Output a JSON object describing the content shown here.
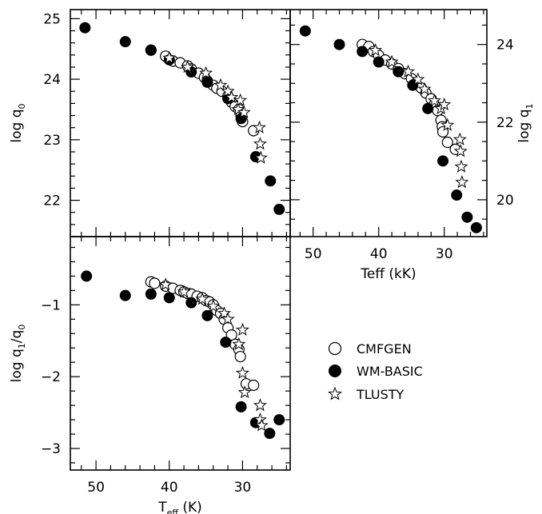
{
  "chart_data": [
    {
      "id": "top-left",
      "type": "scatter",
      "xlim": [
        53.5,
        23.5
      ],
      "ylim": [
        21.4,
        25.15
      ],
      "xticks": [
        50,
        40,
        30
      ],
      "xticklabels": [],
      "yticks": [
        22,
        23,
        24,
        25
      ],
      "yticklabels": [
        "22",
        "23",
        "24",
        "25"
      ],
      "ylabel_main": "log q",
      "ylabel_sub": "0",
      "xlabel_main": "",
      "xlabel_sub": "",
      "xlabel_tail": "",
      "ylabel_side": "left",
      "ytick_side": "left",
      "series": [
        {
          "name": "CMFGEN",
          "marker": "open-circle",
          "points": [
            [
              42.5,
              24.48
            ],
            [
              40.5,
              24.38
            ],
            [
              39.5,
              24.3
            ],
            [
              38.5,
              24.27
            ],
            [
              37.5,
              24.22
            ],
            [
              37,
              24.17
            ],
            [
              36,
              24.1
            ],
            [
              35.2,
              24.03
            ],
            [
              34.8,
              23.97
            ],
            [
              34,
              23.9
            ],
            [
              33.5,
              23.85
            ],
            [
              32.8,
              23.8
            ],
            [
              32,
              23.72
            ],
            [
              31.5,
              23.62
            ],
            [
              31,
              23.55
            ],
            [
              30.5,
              23.5
            ],
            [
              30.2,
              23.4
            ],
            [
              30,
              23.3
            ],
            [
              28.5,
              23.15
            ]
          ]
        },
        {
          "name": "WM-BASIC",
          "marker": "filled-circle",
          "points": [
            [
              51.5,
              24.85
            ],
            [
              46,
              24.62
            ],
            [
              42.5,
              24.48
            ],
            [
              40,
              24.32
            ],
            [
              37,
              24.12
            ],
            [
              34.8,
              23.95
            ],
            [
              32,
              23.68
            ],
            [
              30.2,
              23.35
            ],
            [
              28.2,
              22.72
            ],
            [
              26.2,
              22.32
            ],
            [
              25,
              21.85
            ]
          ]
        },
        {
          "name": "TLUSTY",
          "marker": "star",
          "points": [
            [
              40,
              24.35
            ],
            [
              37.5,
              24.2
            ],
            [
              35,
              24.1
            ],
            [
              33,
              23.9
            ],
            [
              32,
              23.8
            ],
            [
              31.5,
              23.7
            ],
            [
              30.6,
              23.5
            ],
            [
              30.3,
              23.65
            ],
            [
              29.8,
              23.45
            ],
            [
              27.7,
              23.2
            ],
            [
              27.6,
              22.93
            ],
            [
              27.5,
              22.7
            ]
          ]
        }
      ]
    },
    {
      "id": "top-right",
      "type": "scatter",
      "xlim": [
        53.5,
        23.5
      ],
      "ylim": [
        19.05,
        24.9
      ],
      "xticks": [
        50,
        40,
        30
      ],
      "xticklabels": [
        "50",
        "40",
        "30"
      ],
      "yticks": [
        20,
        22,
        24
      ],
      "yticklabels": [
        "20",
        "22",
        "24"
      ],
      "ylabel_main": "log q",
      "ylabel_sub": "1",
      "xlabel_main": "Teff (kK)",
      "xlabel_sub": "",
      "xlabel_tail": "",
      "ylabel_side": "right",
      "ytick_side": "right",
      "series": [
        {
          "name": "CMFGEN",
          "marker": "open-circle",
          "points": [
            [
              42.5,
              24.0
            ],
            [
              41.5,
              23.95
            ],
            [
              40.8,
              23.82
            ],
            [
              40,
              23.72
            ],
            [
              39,
              23.6
            ],
            [
              38,
              23.5
            ],
            [
              37,
              23.38
            ],
            [
              36,
              23.25
            ],
            [
              35,
              23.12
            ],
            [
              34.5,
              22.98
            ],
            [
              33.5,
              22.88
            ],
            [
              32.8,
              22.75
            ],
            [
              32,
              22.6
            ],
            [
              31.5,
              22.45
            ],
            [
              31,
              22.3
            ],
            [
              30.5,
              22.05
            ],
            [
              30.3,
              21.88
            ],
            [
              30.2,
              21.75
            ],
            [
              29.5,
              21.48
            ],
            [
              28.3,
              21.3
            ]
          ]
        },
        {
          "name": "WM-BASIC",
          "marker": "filled-circle",
          "points": [
            [
              51.2,
              24.35
            ],
            [
              46,
              24.0
            ],
            [
              42.5,
              23.82
            ],
            [
              40,
              23.55
            ],
            [
              37,
              23.3
            ],
            [
              34.8,
              22.95
            ],
            [
              32.5,
              22.35
            ],
            [
              30.2,
              21.0
            ],
            [
              28.1,
              20.12
            ],
            [
              26.5,
              19.55
            ],
            [
              25.1,
              19.28
            ]
          ]
        },
        {
          "name": "TLUSTY",
          "marker": "star",
          "points": [
            [
              40.5,
              23.85
            ],
            [
              38,
              23.55
            ],
            [
              35.5,
              23.3
            ],
            [
              34,
              23.1
            ],
            [
              33,
              22.85
            ],
            [
              31.5,
              22.55
            ],
            [
              30.5,
              22.35
            ],
            [
              30,
              22.45
            ],
            [
              29.5,
              21.92
            ],
            [
              27.6,
              21.55
            ],
            [
              27.5,
              21.25
            ],
            [
              27.4,
              20.85
            ],
            [
              27.3,
              20.45
            ]
          ]
        }
      ]
    },
    {
      "id": "bottom-left",
      "type": "scatter",
      "xlim": [
        53.5,
        23.5
      ],
      "ylim": [
        -3.3,
        -0.05
      ],
      "xticks": [
        50,
        40,
        30
      ],
      "xticklabels": [
        "50",
        "40",
        "30"
      ],
      "yticks": [
        -1,
        -2,
        -3
      ],
      "yticklabels": [
        "−1",
        "−2",
        "−3"
      ],
      "ylabel_main": "log q",
      "ylabel_sub": "1",
      "ylabel_tail": "/q",
      "ylabel_sub2": "0",
      "xlabel_main": "T",
      "xlabel_sub": "eff",
      "xlabel_tail": " (K)",
      "ylabel_side": "left",
      "ytick_side": "left",
      "series": [
        {
          "name": "CMFGEN",
          "marker": "open-circle",
          "points": [
            [
              42.5,
              -0.68
            ],
            [
              42,
              -0.7
            ],
            [
              40.5,
              -0.74
            ],
            [
              39.5,
              -0.77
            ],
            [
              38.5,
              -0.8
            ],
            [
              38,
              -0.82
            ],
            [
              37.5,
              -0.84
            ],
            [
              37,
              -0.85
            ],
            [
              36.2,
              -0.88
            ],
            [
              35.5,
              -0.9
            ],
            [
              35,
              -0.94
            ],
            [
              34.5,
              -0.96
            ],
            [
              34,
              -1.0
            ],
            [
              33.5,
              -1.08
            ],
            [
              33,
              -1.12
            ],
            [
              32.5,
              -1.2
            ],
            [
              32,
              -1.32
            ],
            [
              31.5,
              -1.42
            ],
            [
              31,
              -1.55
            ],
            [
              30.5,
              -1.62
            ],
            [
              30.3,
              -1.72
            ],
            [
              29.5,
              -2.1
            ],
            [
              28.5,
              -2.12
            ]
          ]
        },
        {
          "name": "WM-BASIC",
          "marker": "filled-circle",
          "points": [
            [
              51.3,
              -0.6
            ],
            [
              46,
              -0.87
            ],
            [
              42.5,
              -0.85
            ],
            [
              40,
              -0.9
            ],
            [
              37,
              -0.97
            ],
            [
              34.8,
              -1.15
            ],
            [
              32.3,
              -1.52
            ],
            [
              30.2,
              -2.42
            ],
            [
              28.2,
              -2.64
            ],
            [
              26.3,
              -2.79
            ],
            [
              25,
              -2.6
            ]
          ]
        },
        {
          "name": "TLUSTY",
          "marker": "star",
          "points": [
            [
              40.5,
              -0.72
            ],
            [
              38,
              -0.82
            ],
            [
              35.5,
              -0.92
            ],
            [
              34,
              -1.02
            ],
            [
              32.5,
              -1.12
            ],
            [
              32,
              -1.2
            ],
            [
              30.5,
              -1.55
            ],
            [
              30,
              -1.35
            ],
            [
              30,
              -1.95
            ],
            [
              29.7,
              -2.22
            ],
            [
              27.6,
              -2.4
            ],
            [
              27.6,
              -2.6
            ],
            [
              27.4,
              -2.68
            ]
          ]
        }
      ]
    }
  ],
  "legend": {
    "items": [
      {
        "marker": "open-circle",
        "label": "CMFGEN"
      },
      {
        "marker": "filled-circle",
        "label": "WM-BASIC"
      },
      {
        "marker": "star",
        "label": "TLUSTY"
      }
    ]
  }
}
